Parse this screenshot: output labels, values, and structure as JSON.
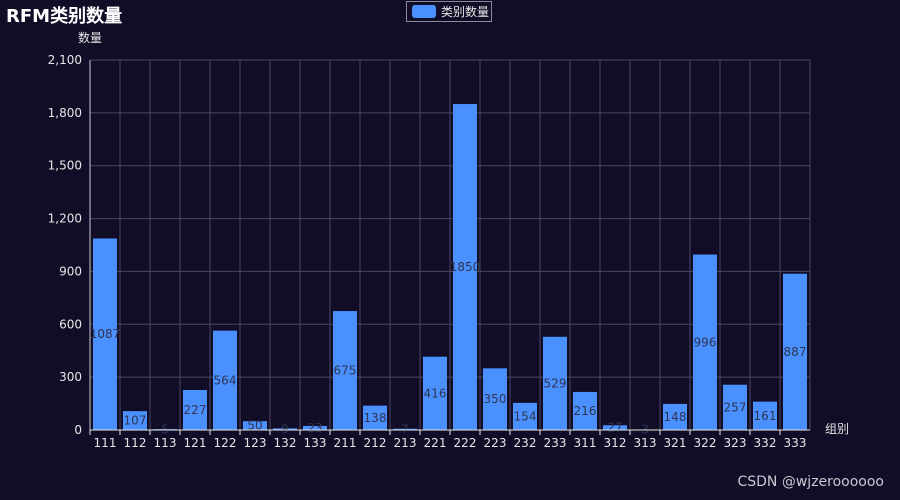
{
  "chart_data": {
    "type": "bar",
    "title": "RFM类别数量",
    "legend": "类别数量",
    "legend_position": "top-center",
    "xlabel": "组别",
    "ylabel": "数量",
    "ylim": [
      0,
      2100
    ],
    "yticks": [
      0,
      300,
      600,
      900,
      1200,
      1500,
      1800,
      2100
    ],
    "ytick_labels": [
      "0",
      "300",
      "600",
      "900",
      "1,200",
      "1,500",
      "1,800",
      "2,100"
    ],
    "grid": true,
    "categories": [
      "111",
      "112",
      "113",
      "121",
      "122",
      "123",
      "132",
      "133",
      "211",
      "212",
      "213",
      "221",
      "222",
      "223",
      "232",
      "233",
      "311",
      "312",
      "313",
      "321",
      "322",
      "323",
      "332",
      "333"
    ],
    "values": [
      1087,
      107,
      5,
      227,
      564,
      50,
      9,
      23,
      675,
      138,
      7,
      416,
      1850,
      350,
      154,
      529,
      216,
      27,
      3,
      148,
      996,
      257,
      161,
      887
    ],
    "bar_color": "#4a90ff"
  },
  "watermark": "CSDN @wjzeroooooo"
}
